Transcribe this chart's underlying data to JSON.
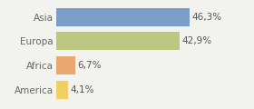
{
  "categories": [
    "America",
    "Africa",
    "Europa",
    "Asia"
  ],
  "values": [
    4.1,
    6.7,
    42.9,
    46.3
  ],
  "labels": [
    "4,1%",
    "6,7%",
    "42,9%",
    "46,3%"
  ],
  "bar_colors": [
    "#f0d060",
    "#e8a870",
    "#bcc882",
    "#7b9ec8"
  ],
  "background_color": "#f2f2ee",
  "xlim": [
    0,
    58
  ],
  "bar_height": 0.75,
  "label_fontsize": 7.5,
  "tick_fontsize": 7.5,
  "label_color": "#555555",
  "tick_color": "#666666"
}
